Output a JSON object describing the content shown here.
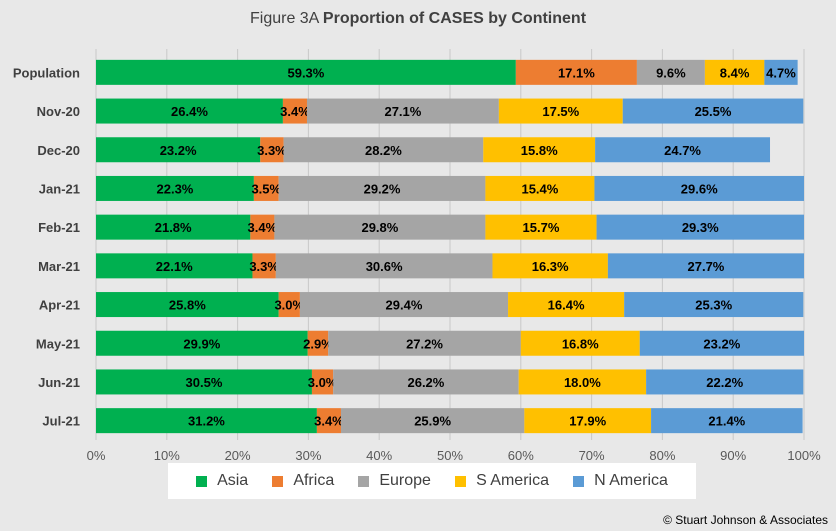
{
  "title": {
    "prefix": "Figure  3A",
    "main": "Proportion of CASES by Continent"
  },
  "credit": "© Stuart Johnson & Associates",
  "chart_data": {
    "type": "bar",
    "orientation": "horizontal",
    "stacked": true,
    "categories": [
      "Population",
      "Nov-20",
      "Dec-20",
      "Jan-21",
      "Feb-21",
      "Mar-21",
      "Apr-21",
      "May-21",
      "Jun-21",
      "Jul-21"
    ],
    "series": [
      {
        "name": "Asia",
        "color": "#00b050",
        "values": [
          59.3,
          26.4,
          23.2,
          22.3,
          21.8,
          22.1,
          25.8,
          29.9,
          30.5,
          31.2
        ]
      },
      {
        "name": "Africa",
        "color": "#ed7d31",
        "values": [
          17.1,
          3.4,
          3.3,
          3.5,
          3.4,
          3.3,
          3.0,
          2.9,
          3.0,
          3.4
        ]
      },
      {
        "name": "Europe",
        "color": "#a5a5a5",
        "values": [
          9.6,
          27.1,
          28.2,
          29.2,
          29.8,
          30.6,
          29.4,
          27.2,
          26.2,
          25.9
        ]
      },
      {
        "name": "S America",
        "color": "#ffc000",
        "values": [
          8.4,
          17.5,
          15.8,
          15.4,
          15.7,
          16.3,
          16.4,
          16.8,
          18.0,
          17.9
        ]
      },
      {
        "name": "N America",
        "color": "#5b9bd5",
        "values": [
          4.7,
          25.5,
          24.7,
          29.6,
          29.3,
          27.7,
          25.3,
          23.2,
          22.2,
          21.4
        ]
      }
    ],
    "data_labels": [
      [
        "59.3%",
        "17.1%",
        "9.6%",
        "8.4%",
        "4.7%"
      ],
      [
        "26.4%",
        "3.4%",
        "27.1%",
        "17.5%",
        "25.5%"
      ],
      [
        "23.2%",
        "3.3%",
        "28.2%",
        "15.8%",
        "24.7%"
      ],
      [
        "22.3%",
        "3.5%",
        "29.2%",
        "15.4%",
        "29.6%"
      ],
      [
        "21.8%",
        "3.4%",
        "29.8%",
        "15.7%",
        "29.3%"
      ],
      [
        "22.1%",
        "3.3%",
        "30.6%",
        "16.3%",
        "27.7%"
      ],
      [
        "25.8%",
        "3.0%",
        "29.4%",
        "16.4%",
        "25.3%"
      ],
      [
        "29.9%",
        "2.9%",
        "27.2%",
        "16.8%",
        "23.2%"
      ],
      [
        "30.5%",
        "3.0%",
        "26.2%",
        "18.0%",
        "22.2%"
      ],
      [
        "31.2%",
        "3.4%",
        "25.9%",
        "17.9%",
        "21.4%"
      ]
    ],
    "xlim": [
      0,
      100
    ],
    "xticks": [
      "0%",
      "10%",
      "20%",
      "30%",
      "40%",
      "50%",
      "60%",
      "70%",
      "80%",
      "90%",
      "100%"
    ],
    "grid": true,
    "legend_position": "bottom"
  }
}
